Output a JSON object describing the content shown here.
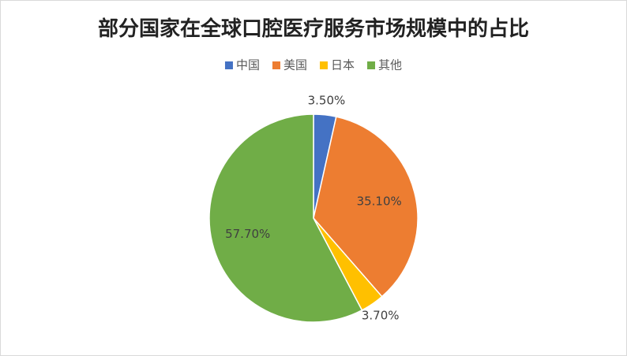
{
  "chart_data": {
    "type": "pie",
    "title": "部分国家在全球口腔医疗服务市场规模中的占比",
    "categories": [
      "中国",
      "美国",
      "日本",
      "其他"
    ],
    "values": [
      3.5,
      35.1,
      3.7,
      57.7
    ],
    "value_labels": [
      "3.50%",
      "35.10%",
      "3.70%",
      "57.70%"
    ],
    "colors": [
      "#4472c4",
      "#ed7d31",
      "#ffc000",
      "#70ad47"
    ],
    "legend": "top"
  }
}
